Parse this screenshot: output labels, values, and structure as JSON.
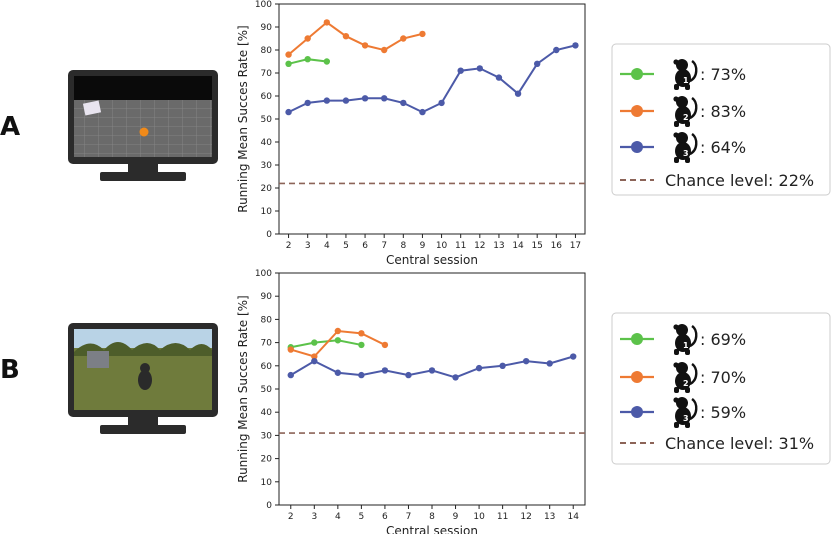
{
  "panels": [
    {
      "letter": "A",
      "monitor_scene": "abstract-grid-arena",
      "legend": {
        "entries": [
          {
            "icon": "monkey-1-icon",
            "text": ": 73%",
            "color": "#5cc24a"
          },
          {
            "icon": "monkey-2-icon",
            "text": ": 83%",
            "color": "#ee7a33"
          },
          {
            "icon": "monkey-3-icon",
            "text": ": 64%",
            "color": "#4c5aa8"
          },
          {
            "icon": "chance-dash",
            "text": "Chance level: 22%",
            "color": "#8c6458"
          }
        ]
      }
    },
    {
      "letter": "B",
      "monitor_scene": "forest-environment",
      "legend": {
        "entries": [
          {
            "icon": "monkey-1-icon",
            "text": ": 69%",
            "color": "#5cc24a"
          },
          {
            "icon": "monkey-2-icon",
            "text": ": 70%",
            "color": "#ee7a33"
          },
          {
            "icon": "monkey-3-icon",
            "text": ": 59%",
            "color": "#4c5aa8"
          },
          {
            "icon": "chance-dash",
            "text": "Chance level: 31%",
            "color": "#8c6458"
          }
        ]
      }
    }
  ],
  "chart_data": [
    {
      "type": "line",
      "xlabel": "Central session",
      "ylabel": "Running Mean Succes Rate [%]",
      "ylim": [
        0,
        100
      ],
      "xlim": [
        1.5,
        17.5
      ],
      "xticks": [
        2,
        3,
        4,
        5,
        6,
        7,
        8,
        9,
        10,
        11,
        12,
        13,
        14,
        15,
        16,
        17
      ],
      "yticks": [
        0,
        10,
        20,
        30,
        40,
        50,
        60,
        70,
        80,
        90,
        100
      ],
      "grid": false,
      "legend_position": "right-outside",
      "chance_level": 22,
      "series": [
        {
          "color": "#5cc24a",
          "x": [
            2,
            3,
            4
          ],
          "values": [
            74,
            76,
            75
          ]
        },
        {
          "color": "#ee7a33",
          "x": [
            2,
            3,
            4,
            5,
            6,
            7,
            8,
            9
          ],
          "values": [
            78,
            85,
            92,
            86,
            82,
            80,
            85,
            87
          ]
        },
        {
          "color": "#4c5aa8",
          "x": [
            2,
            3,
            4,
            5,
            6,
            7,
            8,
            9,
            10,
            11,
            12,
            13,
            14,
            15,
            16,
            17
          ],
          "values": [
            53,
            57,
            58,
            58,
            59,
            59,
            57,
            53,
            57,
            71,
            72,
            68,
            61,
            74,
            80,
            82
          ]
        }
      ]
    },
    {
      "type": "line",
      "xlabel": "Central session",
      "ylabel": "Running Mean Succes Rate [%]",
      "ylim": [
        0,
        100
      ],
      "xlim": [
        1.5,
        14.5
      ],
      "xticks": [
        2,
        3,
        4,
        5,
        6,
        7,
        8,
        9,
        10,
        11,
        12,
        13,
        14
      ],
      "yticks": [
        0,
        10,
        20,
        30,
        40,
        50,
        60,
        70,
        80,
        90,
        100
      ],
      "grid": false,
      "legend_position": "right-outside",
      "chance_level": 31,
      "series": [
        {
          "color": "#5cc24a",
          "x": [
            2,
            3,
            4,
            5
          ],
          "values": [
            68,
            70,
            71,
            69
          ]
        },
        {
          "color": "#ee7a33",
          "x": [
            2,
            3,
            4,
            5,
            6
          ],
          "values": [
            67,
            64,
            75,
            74,
            69
          ]
        },
        {
          "color": "#4c5aa8",
          "x": [
            2,
            3,
            4,
            5,
            6,
            7,
            8,
            9,
            10,
            11,
            12,
            13,
            14
          ],
          "values": [
            56,
            62,
            57,
            56,
            58,
            56,
            58,
            55,
            59,
            60,
            62,
            61,
            64
          ]
        }
      ]
    }
  ]
}
